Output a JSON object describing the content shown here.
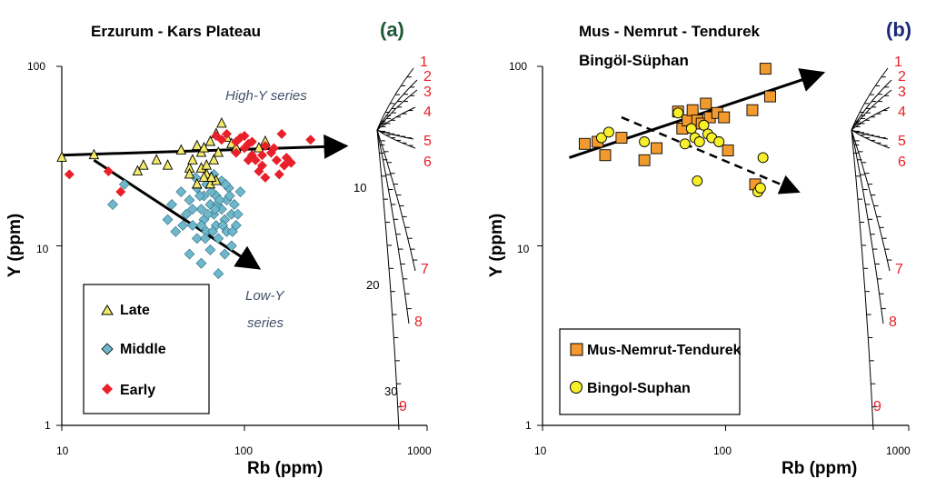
{
  "colors": {
    "late": "#f3e96a",
    "middle": "#6fb8cc",
    "early": "#e8202a",
    "mus": "#f29a2e",
    "bingol": "#f7ef2a",
    "curve_label": "#e8202a"
  },
  "chart_data": [
    {
      "type": "scatter",
      "panel_label": "(a)",
      "title": "Erzurum - Kars Plateau",
      "xlabel": "Rb (ppm)",
      "ylabel": "Y (ppm)",
      "x_scale": "log",
      "y_scale": "log",
      "xlim": [
        10,
        1000
      ],
      "ylim": [
        1,
        100
      ],
      "x_ticks": [
        "10",
        "100",
        "1000"
      ],
      "y_ticks": [
        "1",
        "10",
        "100"
      ],
      "annotations": [
        "High-Y series",
        "Low-Y",
        "series"
      ],
      "trend_arrows": [
        {
          "from": [
            10,
            32
          ],
          "to": [
            360,
            36
          ],
          "style": "solid"
        },
        {
          "from": [
            15,
            30
          ],
          "to": [
            120,
            7.5
          ],
          "style": "solid"
        }
      ],
      "series": [
        {
          "name": "Late",
          "marker": "triangle",
          "points": [
            [
              10,
              31
            ],
            [
              15,
              32
            ],
            [
              26,
              26
            ],
            [
              28,
              28
            ],
            [
              33,
              30
            ],
            [
              38,
              28
            ],
            [
              45,
              34
            ],
            [
              50,
              27
            ],
            [
              52,
              30
            ],
            [
              55,
              36
            ],
            [
              58,
              33
            ],
            [
              60,
              35
            ],
            [
              62,
              25
            ],
            [
              65,
              38
            ],
            [
              68,
              30
            ],
            [
              70,
              42
            ],
            [
              72,
              33
            ],
            [
              75,
              48
            ],
            [
              80,
              40
            ],
            [
              85,
              37
            ],
            [
              90,
              35
            ],
            [
              55,
              22
            ],
            [
              60,
              24
            ],
            [
              65,
              22
            ],
            [
              70,
              23
            ],
            [
              58,
              27
            ],
            [
              120,
              35
            ],
            [
              130,
              38
            ],
            [
              110,
              32
            ],
            [
              50,
              25
            ],
            [
              62,
              28
            ],
            [
              66,
              24
            ]
          ]
        },
        {
          "name": "Middle",
          "marker": "diamond",
          "points": [
            [
              19,
              17
            ],
            [
              22,
              22
            ],
            [
              38,
              14
            ],
            [
              40,
              17
            ],
            [
              42,
              12
            ],
            [
              45,
              20
            ],
            [
              48,
              15
            ],
            [
              50,
              9
            ],
            [
              50,
              18
            ],
            [
              52,
              13
            ],
            [
              55,
              21
            ],
            [
              55,
              11
            ],
            [
              58,
              16
            ],
            [
              58,
              8
            ],
            [
              60,
              19
            ],
            [
              60,
              14
            ],
            [
              62,
              12
            ],
            [
              62,
              22
            ],
            [
              65,
              17
            ],
            [
              65,
              9.5
            ],
            [
              68,
              15
            ],
            [
              68,
              25
            ],
            [
              70,
              13
            ],
            [
              70,
              19
            ],
            [
              72,
              11
            ],
            [
              72,
              7
            ],
            [
              75,
              16
            ],
            [
              75,
              23
            ],
            [
              78,
              14
            ],
            [
              78,
              9
            ],
            [
              80,
              18
            ],
            [
              80,
              12
            ],
            [
              82,
              21
            ],
            [
              85,
              15
            ],
            [
              85,
              10
            ],
            [
              88,
              17
            ],
            [
              90,
              13
            ],
            [
              95,
              20
            ],
            [
              52,
              16
            ],
            [
              57,
              19
            ],
            [
              63,
              15
            ],
            [
              66,
              20
            ],
            [
              71,
              17
            ],
            [
              76,
              13
            ],
            [
              83,
              19
            ],
            [
              86,
              12
            ],
            [
              46,
              13
            ],
            [
              54,
              24
            ],
            [
              61,
              11
            ],
            [
              69,
              16
            ],
            [
              79,
              22
            ],
            [
              92,
              15
            ],
            [
              67,
              12
            ],
            [
              73,
              18
            ],
            [
              58,
              13
            ]
          ]
        },
        {
          "name": "Early",
          "marker": "diamond",
          "points": [
            [
              11,
              25
            ],
            [
              18,
              26
            ],
            [
              21,
              20
            ],
            [
              70,
              41
            ],
            [
              80,
              42
            ],
            [
              90,
              38
            ],
            [
              95,
              40
            ],
            [
              100,
              35
            ],
            [
              105,
              37
            ],
            [
              110,
              32
            ],
            [
              115,
              30
            ],
            [
              120,
              26
            ],
            [
              125,
              28
            ],
            [
              130,
              24
            ],
            [
              140,
              33
            ],
            [
              150,
              30
            ],
            [
              160,
              42
            ],
            [
              165,
              28
            ],
            [
              170,
              31
            ],
            [
              180,
              29
            ],
            [
              230,
              39
            ],
            [
              100,
              41
            ],
            [
              110,
              38
            ],
            [
              130,
              36
            ],
            [
              145,
              35
            ],
            [
              90,
              33
            ],
            [
              75,
              39
            ],
            [
              105,
              30
            ],
            [
              125,
              32
            ],
            [
              155,
              25
            ]
          ]
        }
      ],
      "legend": {
        "position": "bottom-left",
        "entries": [
          "Late",
          "Middle",
          "Early"
        ]
      },
      "fan_diagram": {
        "curve_labels": [
          "1",
          "2",
          "3",
          "4",
          "5",
          "6",
          "7",
          "8",
          "9"
        ],
        "percent_labels": [
          "10",
          "20",
          "30"
        ]
      }
    },
    {
      "type": "scatter",
      "panel_label": "(b)",
      "title": "Mus - Nemrut - Tendurek",
      "subtitle": "Bingöl-Süphan",
      "xlabel": "Rb (ppm)",
      "ylabel": "Y (ppm)",
      "x_scale": "log",
      "y_scale": "log",
      "xlim": [
        10,
        1000
      ],
      "ylim": [
        1,
        100
      ],
      "x_ticks": [
        "10",
        "100",
        "1000"
      ],
      "y_ticks": [
        "1",
        "10",
        "100"
      ],
      "trend_arrows": [
        {
          "from": [
            14,
            31
          ],
          "to": [
            340,
            92
          ],
          "style": "solid"
        },
        {
          "from": [
            27,
            52
          ],
          "to": [
            250,
            20
          ],
          "style": "dashed"
        }
      ],
      "series": [
        {
          "name": "Mus-Nemrut-Tendurek",
          "marker": "square",
          "points": [
            [
              17,
              37
            ],
            [
              20,
              38
            ],
            [
              22,
              32
            ],
            [
              27,
              40
            ],
            [
              36,
              30
            ],
            [
              42,
              35
            ],
            [
              55,
              56
            ],
            [
              58,
              45
            ],
            [
              62,
              50
            ],
            [
              66,
              57
            ],
            [
              70,
              50
            ],
            [
              74,
              48
            ],
            [
              78,
              62
            ],
            [
              82,
              52
            ],
            [
              90,
              55
            ],
            [
              98,
              52
            ],
            [
              103,
              34
            ],
            [
              140,
              57
            ],
            [
              145,
              22
            ],
            [
              165,
              97
            ],
            [
              175,
              68
            ]
          ]
        },
        {
          "name": "Bingol-Suphan",
          "marker": "circle",
          "points": [
            [
              21,
              40
            ],
            [
              23,
              43
            ],
            [
              36,
              38
            ],
            [
              55,
              55
            ],
            [
              60,
              37
            ],
            [
              65,
              45
            ],
            [
              68,
              40
            ],
            [
              70,
              23
            ],
            [
              72,
              38
            ],
            [
              76,
              47
            ],
            [
              80,
              42
            ],
            [
              84,
              40
            ],
            [
              92,
              38
            ],
            [
              150,
              20
            ],
            [
              155,
              21
            ],
            [
              160,
              31
            ]
          ]
        }
      ],
      "legend": {
        "position": "bottom-left",
        "entries": [
          "Mus-Nemrut-Tendurek",
          "Bingol-Suphan"
        ]
      },
      "fan_diagram": {
        "curve_labels": [
          "1",
          "2",
          "3",
          "4",
          "5",
          "6",
          "7",
          "8",
          "9"
        ]
      }
    }
  ]
}
